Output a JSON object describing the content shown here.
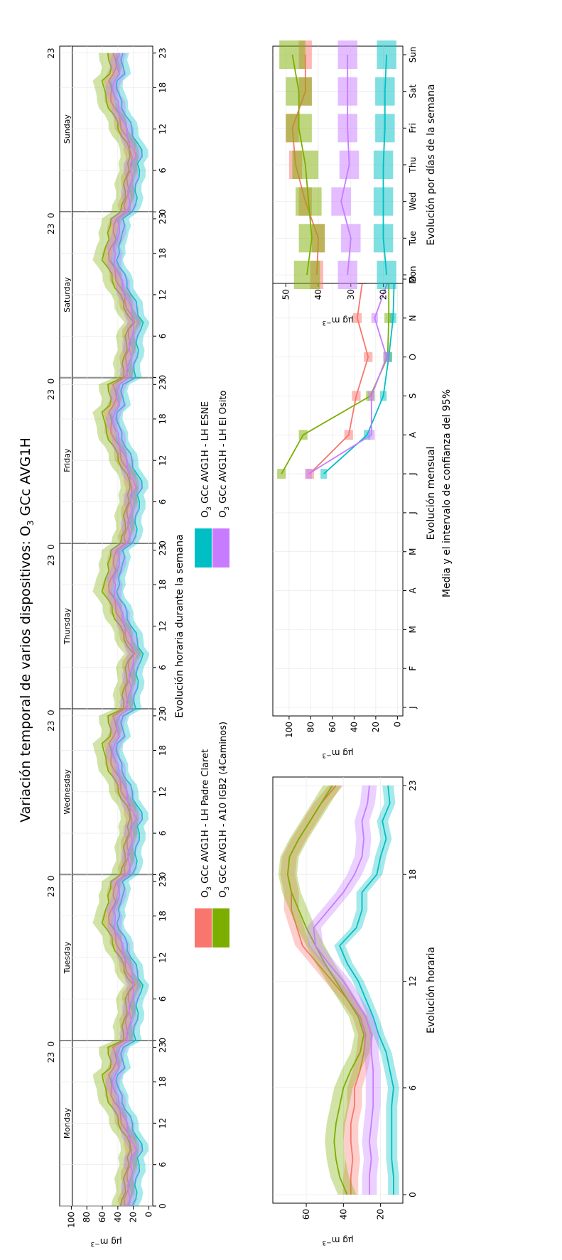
{
  "title_prefix": "Variación temporal de varios dispositivos: O",
  "title_sub": "3",
  "title_suffix": " GCc AVG1H",
  "unit": {
    "base": "µg m",
    "exp": "−3"
  },
  "colors": {
    "padre_claret": "#F8766D",
    "esne": "#00BFC4",
    "a10": "#7CAE00",
    "el_osito": "#C77CFF"
  },
  "legend": [
    {
      "key": "padre_claret",
      "o": "O",
      "sub": "3",
      "rest": " GCc AVG1H - LH Padre Claret"
    },
    {
      "key": "a10",
      "o": "O",
      "sub": "3",
      "rest": " GCc AVG1H - A10 IGB2 (4Caminos)"
    },
    {
      "key": "esne",
      "o": "O",
      "sub": "3",
      "rest": " GCc AVG1H - LH ESNE"
    },
    {
      "key": "el_osito",
      "o": "O",
      "sub": "3",
      "rest": " GCc AVG1H - LH El Osito"
    }
  ],
  "chart_data": [
    {
      "id": "weekly-hourly",
      "type": "line",
      "xlabel": "Evolución horaria durante la semana",
      "days": [
        "Monday",
        "Tuesday",
        "Wednesday",
        "Thursday",
        "Friday",
        "Saturday",
        "Sunday"
      ],
      "hour_ticks": [
        0,
        6,
        12,
        18,
        23
      ],
      "top_ticks": [
        "0",
        "23"
      ],
      "top_last": "23",
      "yticks": [
        0,
        20,
        40,
        60,
        80,
        100
      ],
      "ylim": [
        -5,
        115
      ],
      "series": [
        {
          "key": "padre_claret",
          "min": 20,
          "max": 50,
          "trend": 1,
          "band": 8
        },
        {
          "key": "a10",
          "min": 22,
          "max": 58,
          "trend": 0,
          "band": 12
        },
        {
          "key": "esne",
          "min": 8,
          "max": 40,
          "trend": 0,
          "band": 8
        },
        {
          "key": "el_osito",
          "min": 18,
          "max": 45,
          "trend": 0,
          "band": 9
        }
      ]
    },
    {
      "id": "hourly",
      "type": "line",
      "xlabel": "Evolución horaria",
      "xticks": [
        0,
        6,
        12,
        18,
        23
      ],
      "yticks": [
        20,
        40,
        60
      ],
      "ylim": [
        8,
        78
      ],
      "x": [
        0,
        1,
        2,
        3,
        4,
        5,
        6,
        7,
        8,
        9,
        10,
        11,
        12,
        13,
        14,
        15,
        16,
        17,
        18,
        19,
        20,
        21,
        22,
        23
      ],
      "series": [
        {
          "key": "padre_claret",
          "values": [
            36,
            36,
            35,
            36,
            36,
            34,
            34,
            31,
            29,
            28,
            31,
            38,
            46,
            54,
            62,
            65,
            68,
            68,
            70,
            69,
            64,
            58,
            52,
            44
          ],
          "band": 4
        },
        {
          "key": "a10",
          "values": [
            38,
            42,
            44,
            45,
            44,
            42,
            40,
            36,
            31,
            29,
            32,
            38,
            44,
            50,
            55,
            60,
            64,
            68,
            70,
            69,
            64,
            58,
            52,
            46
          ],
          "band": 5
        },
        {
          "key": "esne",
          "values": [
            13,
            13,
            14,
            14,
            14,
            14,
            13,
            15,
            17,
            21,
            24,
            28,
            32,
            38,
            42,
            33,
            30,
            30,
            22,
            20,
            17,
            19,
            15,
            16
          ],
          "band": 3
        },
        {
          "key": "el_osito",
          "values": [
            26,
            26,
            25,
            26,
            25,
            24,
            24,
            24,
            25,
            25,
            28,
            34,
            40,
            48,
            55,
            56,
            48,
            40,
            34,
            30,
            29,
            30,
            27,
            26
          ],
          "band": 4
        }
      ]
    },
    {
      "id": "monthly",
      "type": "line",
      "xlabel": "Evolución mensual",
      "xlabel2": "Media y el intervalo de confianza del 95%",
      "categories": [
        "J",
        "F",
        "M",
        "A",
        "M",
        "J",
        "J",
        "A",
        "S",
        "O",
        "N",
        "D"
      ],
      "yticks": [
        0,
        20,
        40,
        60,
        80,
        100
      ],
      "ylim": [
        -5,
        115
      ],
      "series": [
        {
          "key": "padre_claret",
          "values": [
            null,
            null,
            null,
            null,
            null,
            null,
            81,
            45,
            38,
            27,
            37,
            32
          ],
          "band": 4
        },
        {
          "key": "a10",
          "values": [
            null,
            null,
            null,
            null,
            null,
            null,
            107,
            87,
            25,
            9,
            8,
            8
          ],
          "band": 4
        },
        {
          "key": "esne",
          "values": [
            null,
            null,
            null,
            null,
            null,
            null,
            68,
            28,
            13,
            8,
            4,
            3
          ],
          "band": 3
        },
        {
          "key": "el_osito",
          "values": [
            null,
            null,
            null,
            null,
            null,
            null,
            82,
            24,
            24,
            10,
            21,
            8
          ],
          "band": 3
        }
      ]
    },
    {
      "id": "weekday",
      "type": "line",
      "xlabel": "Evolución por días de la semana",
      "categories": [
        "Mon",
        "Tue",
        "Wed",
        "Thu",
        "Fri",
        "Sat",
        "Sun"
      ],
      "yticks": [
        20,
        30,
        40,
        50
      ],
      "ylim": [
        14,
        54
      ],
      "series": [
        {
          "key": "padre_claret",
          "values": [
            40.5,
            40,
            44,
            47,
            48,
            44,
            44
          ],
          "band": 2
        },
        {
          "key": "a10",
          "values": [
            43.5,
            42,
            43,
            44,
            46,
            46,
            48
          ],
          "band": 4
        },
        {
          "key": "esne",
          "values": [
            19,
            20,
            20,
            20,
            19.5,
            19.5,
            19
          ],
          "band": 3
        },
        {
          "key": "el_osito",
          "values": [
            31,
            30,
            33,
            30.5,
            31,
            31,
            31
          ],
          "band": 3
        }
      ]
    }
  ]
}
